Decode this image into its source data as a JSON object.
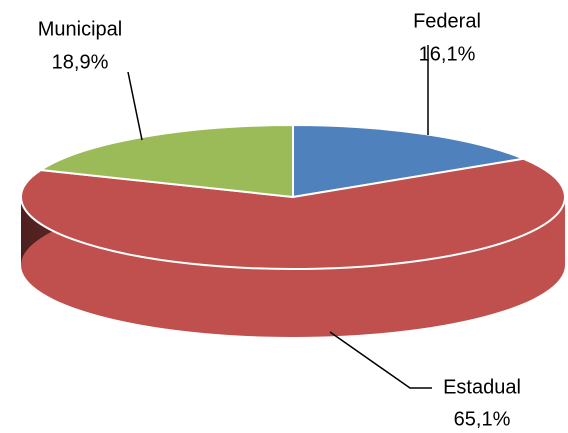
{
  "chart_data": {
    "type": "pie3d",
    "categories": [
      "Federal",
      "Estadual",
      "Municipal"
    ],
    "values": [
      16.1,
      65.1,
      18.9
    ],
    "value_labels": [
      "16,1%",
      "65,1%",
      "18,9%"
    ],
    "colors": [
      "#4f81bd",
      "#c0504d",
      "#9bbb59"
    ]
  }
}
